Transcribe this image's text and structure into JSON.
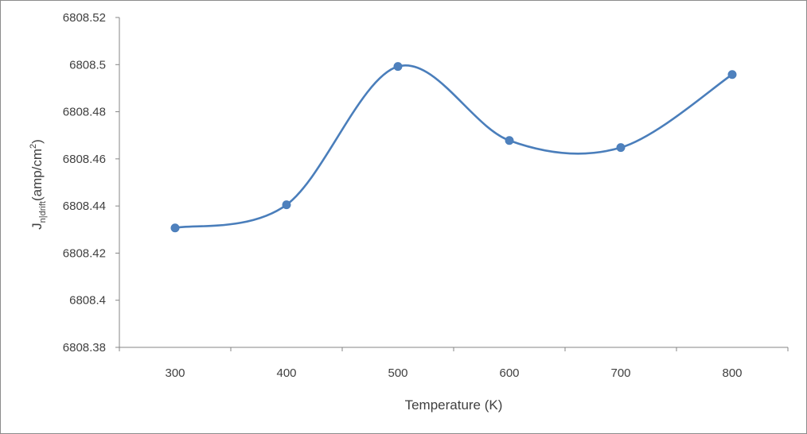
{
  "chart_data": {
    "type": "line",
    "smooth": true,
    "x": [
      300,
      400,
      500,
      600,
      700,
      800
    ],
    "series": [
      {
        "values": [
          6808.4307,
          6808.4405,
          6808.4992,
          6808.4678,
          6808.4648,
          6808.4958
        ]
      }
    ],
    "xlabel": "Temperature (K)",
    "ylabel_parts": {
      "main": "J",
      "subscript": "n|drift",
      "unit_prefix": "(amp/cm",
      "superscript": "2",
      "unit_suffix": ")"
    },
    "ylim": [
      6808.38,
      6808.52
    ],
    "yticks": [
      "6808.38",
      "6808.4",
      "6808.42",
      "6808.44",
      "6808.46",
      "6808.48",
      "6808.5",
      "6808.52"
    ],
    "xticks": [
      "300",
      "400",
      "500",
      "600",
      "700",
      "800"
    ],
    "grid": false,
    "legend": "none",
    "line_color": "#4a7ebb",
    "marker_color": "#4f81bd"
  }
}
